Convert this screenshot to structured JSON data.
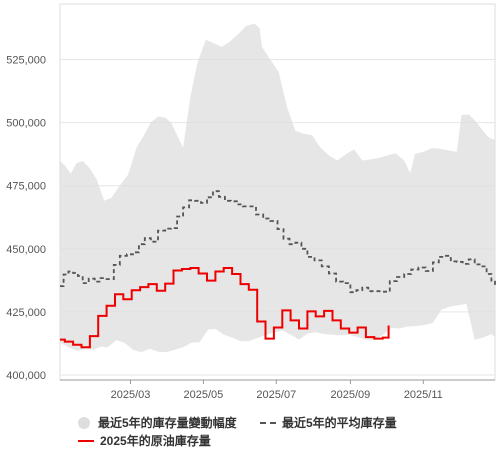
{
  "chart_data": {
    "type": "line",
    "title": "",
    "xlabel": "",
    "ylabel": "",
    "ylim": [
      398000,
      547000
    ],
    "xlim": [
      "2025-01-01",
      "2025-12-31"
    ],
    "y_ticks": [
      400000,
      425000,
      450000,
      475000,
      500000,
      525000
    ],
    "y_tick_labels": [
      "400,000",
      "425,000",
      "450,000",
      "475,000",
      "500,000",
      "525,000"
    ],
    "x_ticks": [
      "2025-03-01",
      "2025-05-01",
      "2025-07-01",
      "2025-09-01",
      "2025-11-01"
    ],
    "x_tick_labels": [
      "2025/03",
      "2025/05",
      "2025/07",
      "2025/09",
      "2025/11"
    ],
    "grid": "horizontal",
    "legend_position": "bottom",
    "series": [
      {
        "name": "最近5年的庫存量變動幅度",
        "kind": "band",
        "color": "#dedede",
        "upper": [
          [
            "2025-01-01",
            484800
          ],
          [
            "2025-01-05",
            483000
          ],
          [
            "2025-01-10",
            479800
          ],
          [
            "2025-01-15",
            484000
          ],
          [
            "2025-01-20",
            484800
          ],
          [
            "2025-01-26",
            481800
          ],
          [
            "2025-02-01",
            477200
          ],
          [
            "2025-02-07",
            469000
          ],
          [
            "2025-02-13",
            470200
          ],
          [
            "2025-02-20",
            475000
          ],
          [
            "2025-02-27",
            479400
          ],
          [
            "2025-03-06",
            490000
          ],
          [
            "2025-03-12",
            494800
          ],
          [
            "2025-03-18",
            500000
          ],
          [
            "2025-03-24",
            502400
          ],
          [
            "2025-03-30",
            502000
          ],
          [
            "2025-04-04",
            500000
          ],
          [
            "2025-04-09",
            495000
          ],
          [
            "2025-04-14",
            490000
          ],
          [
            "2025-04-20",
            510000
          ],
          [
            "2025-04-26",
            523600
          ],
          [
            "2025-05-03",
            532800
          ],
          [
            "2025-05-10",
            531400
          ],
          [
            "2025-05-16",
            530000
          ],
          [
            "2025-05-23",
            532000
          ],
          [
            "2025-05-30",
            535000
          ],
          [
            "2025-06-06",
            538400
          ],
          [
            "2025-06-13",
            539200
          ],
          [
            "2025-06-17",
            537400
          ],
          [
            "2025-06-19",
            530000
          ],
          [
            "2025-06-26",
            525000
          ],
          [
            "2025-07-03",
            520000
          ],
          [
            "2025-07-10",
            506000
          ],
          [
            "2025-07-17",
            496800
          ],
          [
            "2025-07-24",
            495600
          ],
          [
            "2025-07-31",
            495000
          ],
          [
            "2025-08-07",
            490000
          ],
          [
            "2025-08-14",
            487000
          ],
          [
            "2025-08-21",
            485000
          ],
          [
            "2025-08-28",
            487400
          ],
          [
            "2025-09-04",
            489400
          ],
          [
            "2025-09-11",
            485000
          ],
          [
            "2025-09-18",
            485400
          ],
          [
            "2025-09-25",
            486000
          ],
          [
            "2025-10-02",
            487000
          ],
          [
            "2025-10-09",
            487800
          ],
          [
            "2025-10-16",
            485000
          ],
          [
            "2025-10-21",
            480000
          ],
          [
            "2025-10-25",
            487600
          ],
          [
            "2025-11-01",
            488400
          ],
          [
            "2025-11-08",
            489800
          ],
          [
            "2025-11-15",
            489600
          ],
          [
            "2025-11-22",
            489000
          ],
          [
            "2025-11-29",
            488400
          ],
          [
            "2025-12-03",
            503000
          ],
          [
            "2025-12-09",
            503200
          ],
          [
            "2025-12-14",
            501000
          ],
          [
            "2025-12-19",
            498000
          ],
          [
            "2025-12-25",
            494400
          ],
          [
            "2025-12-31",
            493000
          ]
        ],
        "lower": [
          [
            "2025-01-01",
            412800
          ],
          [
            "2025-01-08",
            411000
          ],
          [
            "2025-01-15",
            409600
          ],
          [
            "2025-01-22",
            410200
          ],
          [
            "2025-01-29",
            410000
          ],
          [
            "2025-02-04",
            411200
          ],
          [
            "2025-02-10",
            411000
          ],
          [
            "2025-02-17",
            413800
          ],
          [
            "2025-02-24",
            412800
          ],
          [
            "2025-03-03",
            410000
          ],
          [
            "2025-03-10",
            409000
          ],
          [
            "2025-03-17",
            410400
          ],
          [
            "2025-03-24",
            409200
          ],
          [
            "2025-03-31",
            409000
          ],
          [
            "2025-04-07",
            410000
          ],
          [
            "2025-04-14",
            411000
          ],
          [
            "2025-04-21",
            412800
          ],
          [
            "2025-04-28",
            413000
          ],
          [
            "2025-05-05",
            418000
          ],
          [
            "2025-05-11",
            418200
          ],
          [
            "2025-05-18",
            416000
          ],
          [
            "2025-05-25",
            414800
          ],
          [
            "2025-06-01",
            413400
          ],
          [
            "2025-06-08",
            413400
          ],
          [
            "2025-06-15",
            414600
          ],
          [
            "2025-06-22",
            415800
          ],
          [
            "2025-06-29",
            416800
          ],
          [
            "2025-07-06",
            417600
          ],
          [
            "2025-07-13",
            416000
          ],
          [
            "2025-07-20",
            414000
          ],
          [
            "2025-07-27",
            416400
          ],
          [
            "2025-08-03",
            417000
          ],
          [
            "2025-08-10",
            416200
          ],
          [
            "2025-08-17",
            416000
          ],
          [
            "2025-08-24",
            415800
          ],
          [
            "2025-08-31",
            416000
          ],
          [
            "2025-09-07",
            415000
          ],
          [
            "2025-09-14",
            414000
          ],
          [
            "2025-09-21",
            414000
          ],
          [
            "2025-09-28",
            415800
          ],
          [
            "2025-10-05",
            418600
          ],
          [
            "2025-10-12",
            418400
          ],
          [
            "2025-10-19",
            419200
          ],
          [
            "2025-10-26",
            419400
          ],
          [
            "2025-11-02",
            419800
          ],
          [
            "2025-11-09",
            420600
          ],
          [
            "2025-11-16",
            425800
          ],
          [
            "2025-11-23",
            427000
          ],
          [
            "2025-11-30",
            427600
          ],
          [
            "2025-12-07",
            428200
          ],
          [
            "2025-12-14",
            414000
          ],
          [
            "2025-12-21",
            414800
          ],
          [
            "2025-12-28",
            416200
          ],
          [
            "2025-12-31",
            415000
          ]
        ]
      },
      {
        "name": "最近5年的平均庫存量",
        "kind": "dashed",
        "color": "#555555",
        "points": [
          [
            "2025-01-01",
            435200
          ],
          [
            "2025-01-04",
            439800
          ],
          [
            "2025-01-08",
            441000
          ],
          [
            "2025-01-12",
            440400
          ],
          [
            "2025-01-16",
            439200
          ],
          [
            "2025-01-20",
            436400
          ],
          [
            "2025-01-25",
            438200
          ],
          [
            "2025-01-30",
            437000
          ],
          [
            "2025-02-04",
            438400
          ],
          [
            "2025-02-09",
            438000
          ],
          [
            "2025-02-15",
            443600
          ],
          [
            "2025-02-20",
            447200
          ],
          [
            "2025-02-26",
            447800
          ],
          [
            "2025-03-03",
            448600
          ],
          [
            "2025-03-08",
            451800
          ],
          [
            "2025-03-13",
            454200
          ],
          [
            "2025-03-18",
            452800
          ],
          [
            "2025-03-24",
            457200
          ],
          [
            "2025-03-30",
            458000
          ],
          [
            "2025-04-04",
            458200
          ],
          [
            "2025-04-09",
            462800
          ],
          [
            "2025-04-14",
            466400
          ],
          [
            "2025-04-19",
            469200
          ],
          [
            "2025-04-24",
            469000
          ],
          [
            "2025-04-29",
            468200
          ],
          [
            "2025-05-04",
            470400
          ],
          [
            "2025-05-09",
            472800
          ],
          [
            "2025-05-14",
            470600
          ],
          [
            "2025-05-19",
            469000
          ],
          [
            "2025-05-24",
            468800
          ],
          [
            "2025-05-29",
            467600
          ],
          [
            "2025-06-03",
            466800
          ],
          [
            "2025-06-08",
            466800
          ],
          [
            "2025-06-14",
            463600
          ],
          [
            "2025-06-20",
            462000
          ],
          [
            "2025-06-26",
            461000
          ],
          [
            "2025-07-02",
            457800
          ],
          [
            "2025-07-07",
            454000
          ],
          [
            "2025-07-12",
            451800
          ],
          [
            "2025-07-17",
            452400
          ],
          [
            "2025-07-22",
            450000
          ],
          [
            "2025-07-27",
            446800
          ],
          [
            "2025-08-02",
            445400
          ],
          [
            "2025-08-08",
            443000
          ],
          [
            "2025-08-14",
            440200
          ],
          [
            "2025-08-20",
            437000
          ],
          [
            "2025-08-26",
            436400
          ],
          [
            "2025-09-01",
            432800
          ],
          [
            "2025-09-06",
            433600
          ],
          [
            "2025-09-11",
            434600
          ],
          [
            "2025-09-16",
            433200
          ],
          [
            "2025-09-22",
            433200
          ],
          [
            "2025-09-28",
            433000
          ],
          [
            "2025-10-04",
            437200
          ],
          [
            "2025-10-10",
            438800
          ],
          [
            "2025-10-16",
            440000
          ],
          [
            "2025-10-22",
            441800
          ],
          [
            "2025-10-28",
            442600
          ],
          [
            "2025-11-03",
            441200
          ],
          [
            "2025-11-09",
            444600
          ],
          [
            "2025-11-14",
            446800
          ],
          [
            "2025-11-19",
            447200
          ],
          [
            "2025-11-24",
            445000
          ],
          [
            "2025-11-29",
            444800
          ],
          [
            "2025-12-04",
            444000
          ],
          [
            "2025-12-09",
            445800
          ],
          [
            "2025-12-14",
            443800
          ],
          [
            "2025-12-19",
            443000
          ],
          [
            "2025-12-24",
            440000
          ],
          [
            "2025-12-28",
            437000
          ],
          [
            "2025-12-31",
            435400
          ]
        ]
      },
      {
        "name": "2025年的原油庫存量",
        "kind": "step",
        "color": "#ee0000",
        "points": [
          [
            "2025-01-01",
            414000
          ],
          [
            "2025-01-05",
            413200
          ],
          [
            "2025-01-12",
            412000
          ],
          [
            "2025-01-19",
            411000
          ],
          [
            "2025-01-26",
            415400
          ],
          [
            "2025-02-02",
            423400
          ],
          [
            "2025-02-09",
            427400
          ],
          [
            "2025-02-16",
            432000
          ],
          [
            "2025-02-23",
            430000
          ],
          [
            "2025-03-02",
            433600
          ],
          [
            "2025-03-09",
            434800
          ],
          [
            "2025-03-16",
            436000
          ],
          [
            "2025-03-23",
            433400
          ],
          [
            "2025-03-30",
            436200
          ],
          [
            "2025-04-06",
            441400
          ],
          [
            "2025-04-13",
            442000
          ],
          [
            "2025-04-20",
            442400
          ],
          [
            "2025-04-27",
            440200
          ],
          [
            "2025-05-04",
            437400
          ],
          [
            "2025-05-11",
            441000
          ],
          [
            "2025-05-18",
            442400
          ],
          [
            "2025-05-25",
            440000
          ],
          [
            "2025-06-01",
            436000
          ],
          [
            "2025-06-08",
            433800
          ],
          [
            "2025-06-15",
            421200
          ],
          [
            "2025-06-22",
            414400
          ],
          [
            "2025-06-29",
            418800
          ],
          [
            "2025-07-06",
            425600
          ],
          [
            "2025-07-13",
            421600
          ],
          [
            "2025-07-20",
            418400
          ],
          [
            "2025-07-27",
            425200
          ],
          [
            "2025-08-03",
            423200
          ],
          [
            "2025-08-10",
            425400
          ],
          [
            "2025-08-17",
            421600
          ],
          [
            "2025-08-24",
            418400
          ],
          [
            "2025-08-31",
            416800
          ],
          [
            "2025-09-07",
            418800
          ],
          [
            "2025-09-14",
            415000
          ],
          [
            "2025-09-21",
            414400
          ],
          [
            "2025-09-28",
            414800
          ],
          [
            "2025-10-03",
            419600
          ]
        ]
      }
    ]
  },
  "legend": {
    "band_label": "最近5年的庫存量變動幅度",
    "avg_label": "最近5年的平均庫存量",
    "current_label": "2025年的原油庫存量"
  }
}
